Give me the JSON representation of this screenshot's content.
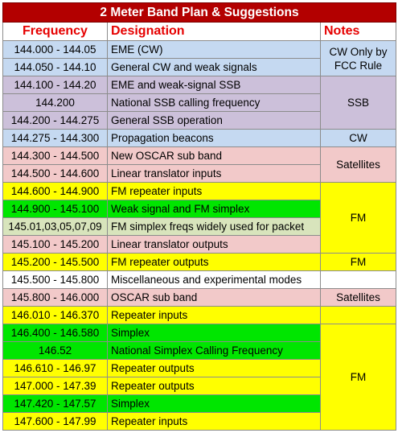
{
  "title": "2 Meter Band Plan & Suggestions",
  "headers": {
    "frequency": "Frequency",
    "designation": "Designation",
    "notes": "Notes"
  },
  "colors": {
    "title_bg": "#b30000",
    "header_text": "#e60000",
    "blue": "#c5d9f1",
    "lavender": "#ccc0da",
    "pink": "#f2c9c9",
    "yellow": "#ffff00",
    "green": "#00e600",
    "pale_green": "#d8e4bc",
    "white": "#ffffff"
  },
  "rows": [
    {
      "freq": "144.000 - 144.05",
      "desig": "EME (CW)",
      "color": "blue"
    },
    {
      "freq": "144.050 - 144.10",
      "desig": "General CW and weak signals",
      "color": "blue"
    },
    {
      "freq": "144.100 - 144.20",
      "desig": "EME and weak-signal SSB",
      "color": "lavender"
    },
    {
      "freq": "144.200",
      "desig": "National SSB calling frequency",
      "color": "lavender"
    },
    {
      "freq": "144.200 - 144.275",
      "desig": "General SSB operation",
      "color": "lavender"
    },
    {
      "freq": "144.275 - 144.300",
      "desig": "Propagation beacons",
      "color": "blue"
    },
    {
      "freq": "144.300 - 144.500",
      "desig": "New OSCAR sub band",
      "color": "pink"
    },
    {
      "freq": "144.500 - 144.600",
      "desig": "Linear translator inputs",
      "color": "pink"
    },
    {
      "freq": "144.600 - 144.900",
      "desig": "FM repeater inputs",
      "color": "yellow"
    },
    {
      "freq": "144.900 - 145.100",
      "desig": "Weak signal and FM simplex",
      "color": "green"
    },
    {
      "freq": "145.01,03,05,07,09",
      "desig": "FM simplex freqs  widely used for packet",
      "color": "pale_green"
    },
    {
      "freq": "145.100 - 145.200",
      "desig": "Linear translator outputs",
      "color": "pink"
    },
    {
      "freq": "145.200 - 145.500",
      "desig": "FM repeater outputs",
      "color": "yellow"
    },
    {
      "freq": "145.500 - 145.800",
      "desig": "Miscellaneous and experimental modes",
      "color": "white"
    },
    {
      "freq": "145.800 - 146.000",
      "desig": "OSCAR sub band",
      "color": "pink"
    },
    {
      "freq": "146.010 - 146.370",
      "desig": "Repeater inputs",
      "color": "yellow"
    },
    {
      "freq": "146.400 - 146.580",
      "desig": "Simplex",
      "color": "green"
    },
    {
      "freq": "146.52",
      "desig": "National Simplex Calling Frequency",
      "color": "green"
    },
    {
      "freq": "146.610 - 146.97",
      "desig": "Repeater outputs",
      "color": "yellow"
    },
    {
      "freq": "147.000 - 147.39",
      "desig": "Repeater outputs",
      "color": "yellow"
    },
    {
      "freq": "147.420 - 147.57",
      "desig": "Simplex",
      "color": "green"
    },
    {
      "freq": "147.600 - 147.99",
      "desig": "Repeater inputs",
      "color": "yellow"
    }
  ],
  "notes": [
    {
      "text": "CW Only by FCC Rule",
      "start": 0,
      "span": 2,
      "color": "blue"
    },
    {
      "text": "SSB",
      "start": 2,
      "span": 3,
      "color": "lavender"
    },
    {
      "text": "CW",
      "start": 5,
      "span": 1,
      "color": "blue"
    },
    {
      "text": "Satellites",
      "start": 6,
      "span": 2,
      "color": "pink"
    },
    {
      "text": "FM",
      "start": 8,
      "span": 4,
      "color": "yellow"
    },
    {
      "text": "FM",
      "start": 12,
      "span": 1,
      "color": "yellow"
    },
    {
      "text": "",
      "start": 13,
      "span": 1,
      "color": "white"
    },
    {
      "text": "Satellites",
      "start": 14,
      "span": 1,
      "color": "pink"
    },
    {
      "text": "",
      "start": 15,
      "span": 1,
      "color": "yellow"
    },
    {
      "text": "FM",
      "start": 16,
      "span": 6,
      "color": "yellow"
    }
  ]
}
